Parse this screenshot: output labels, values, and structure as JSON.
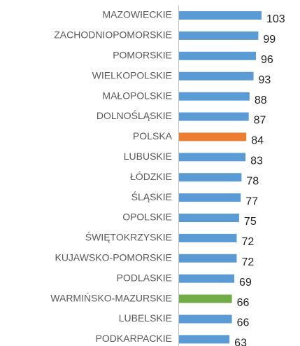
{
  "chart_data": {
    "type": "bar",
    "orientation": "horizontal",
    "categories": [
      "MAZOWIECKIE",
      "ZACHODNIOPOMORSKIE",
      "POMORSKIE",
      "WIELKOPOLSKIE",
      "MAŁOPOLSKIE",
      "DOLNOŚLĄSKIE",
      "POLSKA",
      "LUBUSKIE",
      "ŁÓDZKIE",
      "ŚLĄSKIE",
      "OPOLSKIE",
      "ŚWIĘTOKRZYSKIE",
      "KUJAWSKO-POMORSKIE",
      "PODLASKIE",
      "WARMIŃSKO-MAZURSKIE",
      "LUBELSKIE",
      "PODKARPACKIE"
    ],
    "values": [
      103,
      99,
      96,
      93,
      88,
      87,
      84,
      83,
      78,
      77,
      75,
      72,
      72,
      69,
      66,
      66,
      63
    ],
    "colors": [
      "#5b9bd5",
      "#5b9bd5",
      "#5b9bd5",
      "#5b9bd5",
      "#5b9bd5",
      "#5b9bd5",
      "#ed7d31",
      "#5b9bd5",
      "#5b9bd5",
      "#5b9bd5",
      "#5b9bd5",
      "#5b9bd5",
      "#5b9bd5",
      "#5b9bd5",
      "#70ad47",
      "#5b9bd5",
      "#5b9bd5"
    ]
  }
}
